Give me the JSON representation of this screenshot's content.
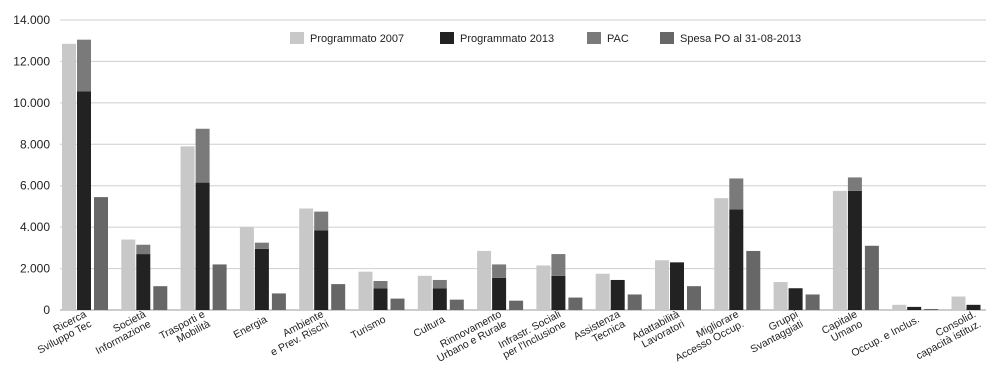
{
  "chart_data": {
    "type": "bar",
    "stacked_pairs": true,
    "categories": [
      "Ricerca\nSviluppo Tec",
      "Società\nInformazione",
      "Trasporti e\nMobilità",
      "Energia",
      "Ambiente\ne Prev. Rischi",
      "Turismo",
      "Cultura",
      "Rinnovamento\nUrbano e Rurale",
      "Infrastr. Sociali\nper l'Inclusione",
      "Assistenza\nTecnica",
      "Adattabilità\nLavoratori",
      "Migliorare\nAccesso Occup.",
      "Gruppi\nSvantaggiati",
      "Capitale\nUmano",
      "Occup. e Inclus.",
      "Consolid.\ncapacità istituz."
    ],
    "series": [
      {
        "name": "Programmato 2007",
        "color": "#c8c8c8",
        "values": [
          12850,
          3400,
          7900,
          4000,
          4900,
          1850,
          1650,
          2850,
          2150,
          1750,
          2400,
          5400,
          1350,
          5750,
          250,
          650
        ]
      },
      {
        "name": "Programmato 2013",
        "color": "#222222",
        "values": [
          10550,
          2700,
          6150,
          2950,
          3850,
          1050,
          1050,
          1550,
          1650,
          1450,
          2300,
          4850,
          1050,
          5750,
          150,
          250
        ]
      },
      {
        "name": "PAC",
        "color": "#7a7a7a",
        "values": [
          2500,
          450,
          2600,
          300,
          900,
          350,
          400,
          650,
          1050,
          0,
          0,
          1500,
          0,
          650,
          0,
          0
        ]
      },
      {
        "name": "Spesa  PO al 31-08-2013",
        "color": "#676767",
        "values": [
          5450,
          1150,
          2200,
          800,
          1250,
          550,
          500,
          450,
          600,
          750,
          1150,
          2850,
          750,
          3100,
          50,
          0
        ]
      }
    ],
    "ylim": [
      0,
      14000
    ],
    "yticks": [
      "0",
      "2.000",
      "4.000",
      "6.000",
      "8.000",
      "10.000",
      "12.000",
      "14.000"
    ],
    "ytick_values": [
      0,
      2000,
      4000,
      6000,
      8000,
      10000,
      12000,
      14000
    ],
    "grid": true,
    "legend_position": "top-center",
    "title": "",
    "xlabel": "",
    "ylabel": ""
  }
}
